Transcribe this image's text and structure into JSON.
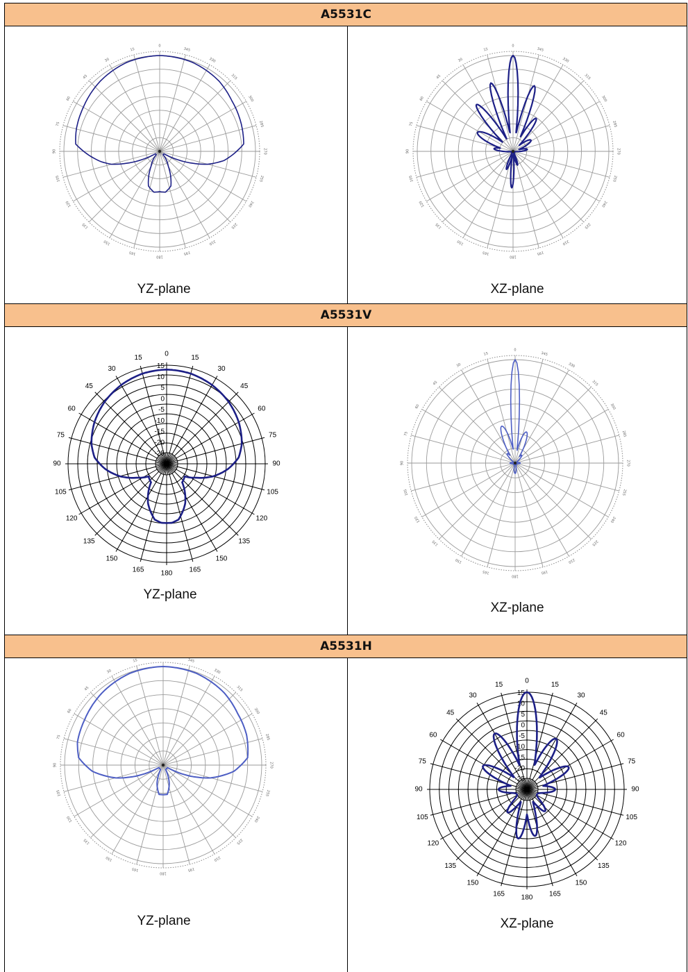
{
  "rows": [
    {
      "title": "A5531C",
      "left_caption": "YZ-plane",
      "right_caption": "XZ-plane"
    },
    {
      "title": "A5531V",
      "left_caption": "YZ-plane",
      "right_caption": "XZ-plane"
    },
    {
      "title": "A5531H",
      "left_caption": "YZ-plane",
      "right_caption": "XZ-plane"
    }
  ],
  "colors": {
    "header_band": "#f8c08d",
    "pattern_dark": "#1c1f86",
    "pattern_light": "#4d5ec4",
    "grid_light": "#9a9a9a",
    "grid_dark": "#000000"
  },
  "chart_data": [
    {
      "type": "polar",
      "id": "c-yz",
      "title": "A5531C",
      "subtitle": "YZ-plane",
      "angles": [
        0,
        15,
        30,
        45,
        60,
        75,
        90,
        105,
        120,
        135,
        150,
        165,
        180,
        195,
        210,
        225,
        240,
        255,
        270,
        285,
        300,
        315,
        330,
        345
      ],
      "series": [
        {
          "pattern": [
            [
              0,
              1.0
            ],
            [
              20,
              0.99
            ],
            [
              40,
              0.96
            ],
            [
              60,
              0.92
            ],
            [
              75,
              0.9
            ],
            [
              85,
              0.88
            ],
            [
              100,
              0.62
            ],
            [
              105,
              0.52
            ],
            [
              112,
              0.3
            ],
            [
              120,
              0.05
            ],
            [
              135,
              0.05
            ],
            [
              150,
              0.18
            ],
            [
              162,
              0.38
            ],
            [
              172,
              0.43
            ],
            [
              180,
              0.42
            ],
            [
              188,
              0.43
            ],
            [
              198,
              0.38
            ],
            [
              210,
              0.18
            ],
            [
              225,
              0.05
            ],
            [
              240,
              0.05
            ],
            [
              248,
              0.3
            ],
            [
              255,
              0.52
            ],
            [
              262,
              0.68
            ],
            [
              275,
              0.88
            ],
            [
              290,
              0.9
            ],
            [
              305,
              0.92
            ],
            [
              320,
              0.96
            ],
            [
              340,
              0.99
            ],
            [
              360,
              1.0
            ]
          ]
        }
      ]
    },
    {
      "type": "polar",
      "id": "c-xz",
      "title": "A5531C",
      "subtitle": "XZ-plane",
      "angles": [
        0,
        15,
        30,
        45,
        60,
        75,
        90,
        105,
        120,
        135,
        150,
        165,
        180,
        195,
        210,
        225,
        240,
        255,
        270,
        285,
        300,
        315,
        330,
        345
      ],
      "series": [
        {
          "lobes": [
            [
              0,
              1.0,
              5
            ],
            [
              18,
              0.75,
              5
            ],
            [
              -18,
              0.72,
              5
            ],
            [
              38,
              0.62,
              6
            ],
            [
              -35,
              0.42,
              6
            ],
            [
              62,
              0.42,
              9
            ],
            [
              -58,
              0.22,
              9
            ],
            [
              82,
              0.2,
              7
            ],
            [
              -82,
              0.15,
              7
            ],
            [
              178,
              0.38,
              4
            ],
            [
              160,
              0.2,
              5
            ],
            [
              -162,
              0.15,
              5
            ]
          ]
        }
      ]
    },
    {
      "type": "polar",
      "id": "v-yz",
      "title": "A5531V",
      "subtitle": "YZ-plane",
      "angular_ticks": [
        "0",
        "15",
        "30",
        "45",
        "60",
        "75",
        "90",
        "105",
        "120",
        "135",
        "150",
        "165",
        "180",
        "165",
        "150",
        "135",
        "120",
        "105",
        "90",
        "75",
        "60",
        "45",
        "30",
        "15"
      ],
      "radial_ticks": [
        "15",
        "10",
        "5",
        "0",
        "-5",
        "-10",
        "-15",
        "-20",
        "-25"
      ],
      "rlim": [
        -25,
        15
      ],
      "series": [
        {
          "pattern_db": [
            [
              0,
              13
            ],
            [
              15,
              12.6
            ],
            [
              30,
              11.5
            ],
            [
              45,
              10
            ],
            [
              60,
              8
            ],
            [
              75,
              5.5
            ],
            [
              85,
              3
            ],
            [
              95,
              -2
            ],
            [
              105,
              -8
            ],
            [
              115,
              -15
            ],
            [
              125,
              -20
            ],
            [
              140,
              -19
            ],
            [
              155,
              -10
            ],
            [
              168,
              -4
            ],
            [
              175,
              -3
            ],
            [
              180,
              -3
            ],
            [
              185,
              -3
            ],
            [
              192,
              -4
            ],
            [
              205,
              -10
            ],
            [
              220,
              -19
            ],
            [
              235,
              -20
            ],
            [
              245,
              -15
            ],
            [
              255,
              -8
            ],
            [
              265,
              -2
            ],
            [
              275,
              3
            ],
            [
              285,
              5.5
            ],
            [
              300,
              8
            ],
            [
              315,
              10
            ],
            [
              330,
              11.5
            ],
            [
              345,
              12.6
            ],
            [
              360,
              13
            ]
          ]
        }
      ]
    },
    {
      "type": "polar",
      "id": "v-xz",
      "title": "A5531V",
      "subtitle": "XZ-plane",
      "angles": [
        0,
        15,
        30,
        45,
        60,
        75,
        90,
        105,
        120,
        135,
        150,
        165,
        180,
        195,
        210,
        225,
        240,
        255,
        270,
        285,
        300,
        315,
        330,
        345
      ],
      "series": [
        {
          "lobes": [
            [
              0,
              1.0,
              4
            ],
            [
              20,
              0.38,
              8
            ],
            [
              -20,
              0.32,
              8
            ],
            [
              40,
              0.12,
              8
            ],
            [
              -40,
              0.1,
              8
            ],
            [
              90,
              0.05,
              10
            ],
            [
              -90,
              0.05,
              10
            ],
            [
              180,
              0.1,
              10
            ]
          ]
        }
      ]
    },
    {
      "type": "polar",
      "id": "h-yz",
      "title": "A5531H",
      "subtitle": "YZ-plane",
      "angles": [
        0,
        15,
        30,
        45,
        60,
        75,
        90,
        105,
        120,
        135,
        150,
        165,
        180,
        195,
        210,
        225,
        240,
        255,
        270,
        285,
        300,
        315,
        330,
        345
      ],
      "series": [
        {
          "pattern": [
            [
              0,
              1.0
            ],
            [
              20,
              0.99
            ],
            [
              40,
              0.96
            ],
            [
              60,
              0.92
            ],
            [
              75,
              0.9
            ],
            [
              85,
              0.86
            ],
            [
              95,
              0.72
            ],
            [
              105,
              0.5
            ],
            [
              112,
              0.3
            ],
            [
              120,
              0.05
            ],
            [
              135,
              0.05
            ],
            [
              150,
              0.05
            ],
            [
              162,
              0.2
            ],
            [
              172,
              0.3
            ],
            [
              180,
              0.3
            ],
            [
              188,
              0.3
            ],
            [
              198,
              0.2
            ],
            [
              210,
              0.05
            ],
            [
              225,
              0.05
            ],
            [
              240,
              0.05
            ],
            [
              248,
              0.3
            ],
            [
              255,
              0.5
            ],
            [
              265,
              0.72
            ],
            [
              275,
              0.86
            ],
            [
              290,
              0.9
            ],
            [
              305,
              0.92
            ],
            [
              320,
              0.96
            ],
            [
              340,
              0.99
            ],
            [
              360,
              1.0
            ]
          ]
        }
      ]
    },
    {
      "type": "polar",
      "id": "h-xz",
      "title": "A5531H",
      "subtitle": "XZ-plane",
      "angular_ticks": [
        "0",
        "15",
        "30",
        "45",
        "60",
        "75",
        "90",
        "105",
        "120",
        "135",
        "150",
        "165",
        "180",
        "165",
        "150",
        "135",
        "120",
        "105",
        "90",
        "75",
        "60",
        "45",
        "30",
        "15"
      ],
      "radial_ticks": [
        "15",
        "10",
        "5",
        "0",
        "-5",
        "-10",
        "-15",
        "-20",
        "-25"
      ],
      "rlim": [
        -25,
        15
      ],
      "series": [
        {
          "lobes": [
            [
              0,
              1.0,
              9
            ],
            [
              30,
              0.62,
              8
            ],
            [
              -30,
              0.55,
              8
            ],
            [
              62,
              0.45,
              8
            ],
            [
              -62,
              0.42,
              8
            ],
            [
              90,
              0.2,
              8
            ],
            [
              -90,
              0.2,
              8
            ],
            [
              170,
              0.45,
              7
            ],
            [
              -170,
              0.42,
              7
            ],
            [
              140,
              0.22,
              7
            ],
            [
              -140,
              0.2,
              7
            ]
          ]
        }
      ]
    }
  ]
}
